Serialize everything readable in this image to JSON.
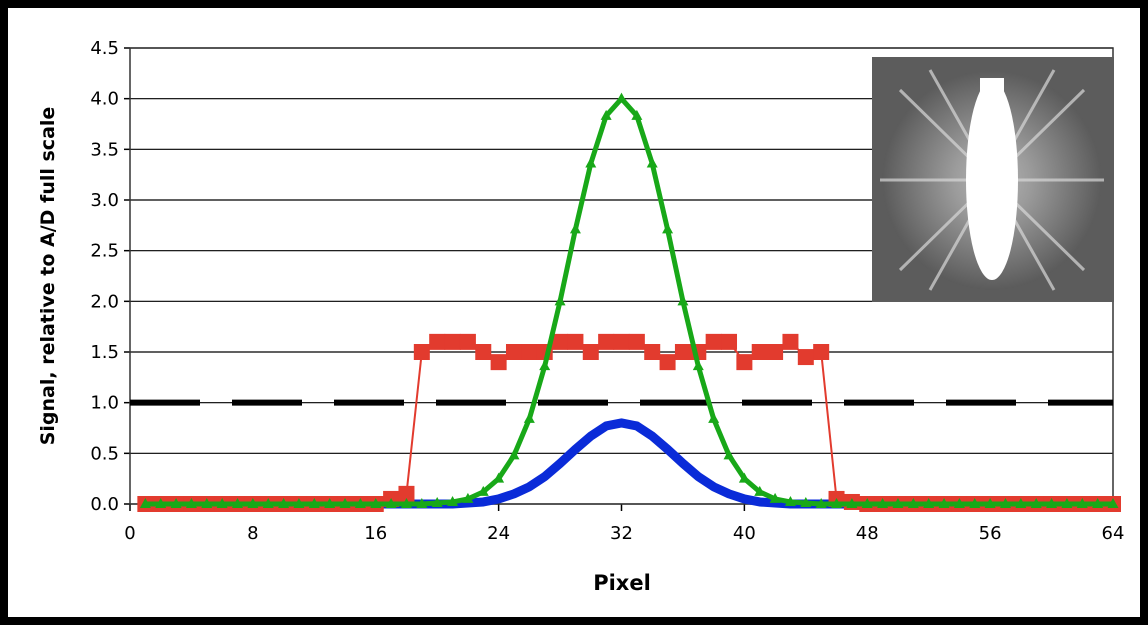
{
  "chart_data": {
    "type": "line",
    "xlabel": "Pixel",
    "ylabel": "Signal, relative to A/D full scale",
    "x": [
      1,
      2,
      3,
      4,
      5,
      6,
      7,
      8,
      9,
      10,
      11,
      12,
      13,
      14,
      15,
      16,
      17,
      18,
      19,
      20,
      21,
      22,
      23,
      24,
      25,
      26,
      27,
      28,
      29,
      30,
      31,
      32,
      33,
      34,
      35,
      36,
      37,
      38,
      39,
      40,
      41,
      42,
      43,
      44,
      45,
      46,
      47,
      48,
      49,
      50,
      51,
      52,
      53,
      54,
      55,
      56,
      57,
      58,
      59,
      60,
      61,
      62,
      63,
      64
    ],
    "series": [
      {
        "color": "#000000",
        "line_width": 6,
        "dash": true,
        "marker": "none",
        "x": [
          0,
          64
        ],
        "values": [
          1.0,
          1.0
        ]
      },
      {
        "color": "#0a2bd8",
        "line_width": 9,
        "dash": false,
        "marker": "none",
        "values": [
          0,
          0,
          0,
          0,
          0,
          0,
          0,
          0,
          0,
          0,
          0,
          0,
          0,
          0,
          0,
          0,
          0,
          0,
          0,
          0,
          0,
          0.01,
          0.02,
          0.05,
          0.1,
          0.17,
          0.27,
          0.4,
          0.54,
          0.67,
          0.77,
          0.8,
          0.77,
          0.67,
          0.54,
          0.4,
          0.27,
          0.17,
          0.1,
          0.05,
          0.02,
          0.01,
          0,
          0,
          0,
          0,
          0,
          0,
          0,
          0,
          0,
          0,
          0,
          0,
          0,
          0,
          0,
          0,
          0,
          0,
          0,
          0,
          0,
          0
        ]
      },
      {
        "color": "#e23b2e",
        "line_width": 2,
        "dash": false,
        "marker": "square",
        "values": [
          0,
          0,
          0,
          0,
          0,
          0,
          0,
          0,
          0,
          0,
          0,
          0,
          0,
          0,
          0,
          0,
          0.05,
          0.1,
          1.5,
          1.6,
          1.6,
          1.6,
          1.5,
          1.4,
          1.5,
          1.5,
          1.5,
          1.6,
          1.6,
          1.5,
          1.6,
          1.6,
          1.6,
          1.5,
          1.4,
          1.5,
          1.5,
          1.6,
          1.6,
          1.4,
          1.5,
          1.5,
          1.6,
          1.45,
          1.5,
          0.05,
          0.02,
          0,
          0,
          0,
          0,
          0,
          0,
          0,
          0,
          0,
          0,
          0,
          0,
          0,
          0,
          0,
          0,
          0
        ]
      },
      {
        "color": "#18a818",
        "line_width": 5,
        "dash": false,
        "marker": "triangle",
        "values": [
          0,
          0,
          0,
          0,
          0,
          0,
          0,
          0,
          0,
          0,
          0,
          0,
          0,
          0,
          0,
          0,
          0,
          0,
          0,
          0.01,
          0.02,
          0.05,
          0.12,
          0.25,
          0.48,
          0.84,
          1.36,
          2.0,
          2.71,
          3.36,
          3.83,
          4.0,
          3.83,
          3.36,
          2.71,
          2.0,
          1.36,
          0.84,
          0.48,
          0.25,
          0.12,
          0.05,
          0.02,
          0.01,
          0,
          0,
          0,
          0,
          0,
          0,
          0,
          0,
          0,
          0,
          0,
          0,
          0,
          0,
          0,
          0,
          0,
          0,
          0,
          0
        ]
      }
    ],
    "xlim": [
      0,
      64
    ],
    "xticks": [
      0,
      8,
      16,
      24,
      32,
      40,
      48,
      56,
      64
    ],
    "ylim": [
      0,
      4.5
    ],
    "yticks": [
      {
        "value": 0,
        "label": "0.0"
      },
      0.5,
      {
        "value": 1,
        "label": "1.0"
      },
      1.5,
      {
        "value": 2,
        "label": "2.0"
      },
      2.5,
      {
        "value": 3,
        "label": "3.0"
      },
      3.5,
      {
        "value": 4,
        "label": "4.0"
      },
      4.5
    ],
    "grid": true
  }
}
